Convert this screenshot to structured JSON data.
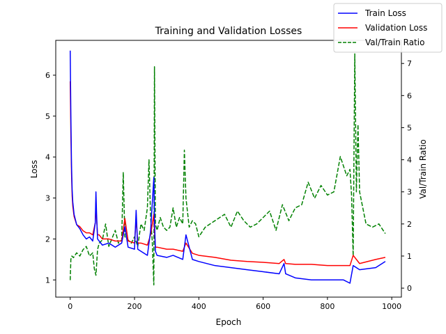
{
  "chart_data": {
    "type": "line",
    "title": "Training and Validation Losses",
    "xlabel": "Epoch",
    "ylabel": "Loss",
    "y2label": "Val/Train Ratio",
    "xlim": [
      -45,
      1030
    ],
    "ylim": [
      0.58,
      6.85
    ],
    "y2lim": [
      -0.28,
      7.72
    ],
    "xticks": [
      0,
      200,
      400,
      600,
      800,
      1000
    ],
    "yticks": [
      1,
      2,
      3,
      4,
      5,
      6
    ],
    "y2ticks": [
      0,
      1,
      2,
      3,
      4,
      5,
      6,
      7
    ],
    "grid": false,
    "legend_position": "top-right",
    "colors": {
      "train": "#0000ff",
      "val": "#ff0000",
      "ratio": "#008000"
    },
    "series": [
      {
        "name": "Train Loss",
        "axis": "left",
        "style": "solid",
        "color": "#0000ff",
        "x": [
          0,
          2,
          4,
          6,
          8,
          12,
          20,
          30,
          40,
          50,
          60,
          70,
          78,
          80,
          82,
          85,
          90,
          100,
          120,
          140,
          160,
          170,
          180,
          200,
          205,
          210,
          220,
          240,
          250,
          260,
          262,
          265,
          270,
          300,
          320,
          350,
          360,
          380,
          400,
          450,
          500,
          550,
          600,
          650,
          665,
          670,
          700,
          750,
          800,
          850,
          870,
          880,
          900,
          950,
          980
        ],
        "values": [
          6.6,
          5.0,
          3.8,
          3.2,
          2.9,
          2.6,
          2.35,
          2.25,
          2.1,
          2.0,
          2.05,
          1.95,
          2.4,
          3.15,
          2.6,
          2.0,
          1.95,
          1.85,
          1.9,
          1.8,
          1.9,
          2.3,
          1.8,
          1.75,
          2.7,
          1.75,
          1.7,
          1.6,
          2.2,
          3.5,
          2.5,
          1.7,
          1.6,
          1.55,
          1.6,
          1.5,
          2.1,
          1.5,
          1.45,
          1.35,
          1.3,
          1.25,
          1.2,
          1.15,
          1.4,
          1.15,
          1.05,
          1.0,
          1.0,
          1.0,
          0.92,
          1.35,
          1.25,
          1.3,
          1.45
        ]
      },
      {
        "name": "Validation Loss",
        "axis": "left",
        "style": "solid",
        "color": "#ff0000",
        "x": [
          0,
          2,
          4,
          6,
          8,
          12,
          20,
          30,
          40,
          50,
          60,
          70,
          78,
          80,
          82,
          85,
          90,
          100,
          120,
          140,
          160,
          170,
          180,
          200,
          205,
          210,
          220,
          240,
          250,
          260,
          262,
          265,
          270,
          300,
          320,
          350,
          360,
          380,
          400,
          450,
          500,
          550,
          600,
          650,
          665,
          670,
          700,
          750,
          800,
          850,
          870,
          880,
          900,
          950,
          980
        ],
        "values": [
          5.85,
          4.6,
          3.6,
          3.05,
          2.8,
          2.55,
          2.35,
          2.3,
          2.2,
          2.15,
          2.15,
          2.1,
          2.4,
          2.9,
          2.5,
          2.1,
          2.1,
          2.0,
          2.0,
          1.95,
          1.95,
          2.5,
          1.95,
          1.9,
          2.5,
          1.9,
          1.9,
          1.85,
          2.1,
          2.6,
          2.2,
          1.8,
          1.8,
          1.75,
          1.75,
          1.7,
          1.9,
          1.65,
          1.6,
          1.55,
          1.48,
          1.45,
          1.43,
          1.4,
          1.5,
          1.4,
          1.38,
          1.38,
          1.35,
          1.35,
          1.35,
          1.6,
          1.4,
          1.5,
          1.55
        ]
      },
      {
        "name": "Val/Train Ratio",
        "axis": "right",
        "style": "dashed",
        "color": "#008000",
        "x": [
          0,
          2,
          5,
          10,
          20,
          30,
          40,
          50,
          60,
          70,
          75,
          80,
          85,
          90,
          100,
          110,
          120,
          140,
          150,
          160,
          165,
          170,
          180,
          190,
          200,
          210,
          220,
          230,
          240,
          245,
          250,
          255,
          260,
          262,
          265,
          270,
          280,
          290,
          300,
          310,
          320,
          330,
          340,
          350,
          355,
          360,
          370,
          380,
          390,
          400,
          420,
          450,
          480,
          500,
          520,
          540,
          560,
          580,
          600,
          620,
          640,
          660,
          680,
          700,
          720,
          740,
          760,
          780,
          800,
          820,
          840,
          860,
          870,
          875,
          880,
          885,
          890,
          895,
          900,
          920,
          940,
          960,
          980
        ],
        "values": [
          0.25,
          0.9,
          1.0,
          0.95,
          1.1,
          1.0,
          1.2,
          1.3,
          1.0,
          1.1,
          0.6,
          0.4,
          1.2,
          1.4,
          1.5,
          2.0,
          1.3,
          1.8,
          1.4,
          1.5,
          3.6,
          1.6,
          1.5,
          1.4,
          1.6,
          1.3,
          2.0,
          1.8,
          2.5,
          4.0,
          2.2,
          1.5,
          0.1,
          6.9,
          2.0,
          1.8,
          2.2,
          1.9,
          1.8,
          1.9,
          2.5,
          1.9,
          2.2,
          2.0,
          4.3,
          2.8,
          1.9,
          2.1,
          2.0,
          1.6,
          1.9,
          2.1,
          2.3,
          1.9,
          2.4,
          2.1,
          1.9,
          2.0,
          2.2,
          2.4,
          1.8,
          2.6,
          2.1,
          2.5,
          2.6,
          3.3,
          2.8,
          3.2,
          2.9,
          3.0,
          4.1,
          3.5,
          3.7,
          2.9,
          1.0,
          7.3,
          3.0,
          5.1,
          3.0,
          2.0,
          1.9,
          2.0,
          1.7
        ]
      }
    ]
  }
}
